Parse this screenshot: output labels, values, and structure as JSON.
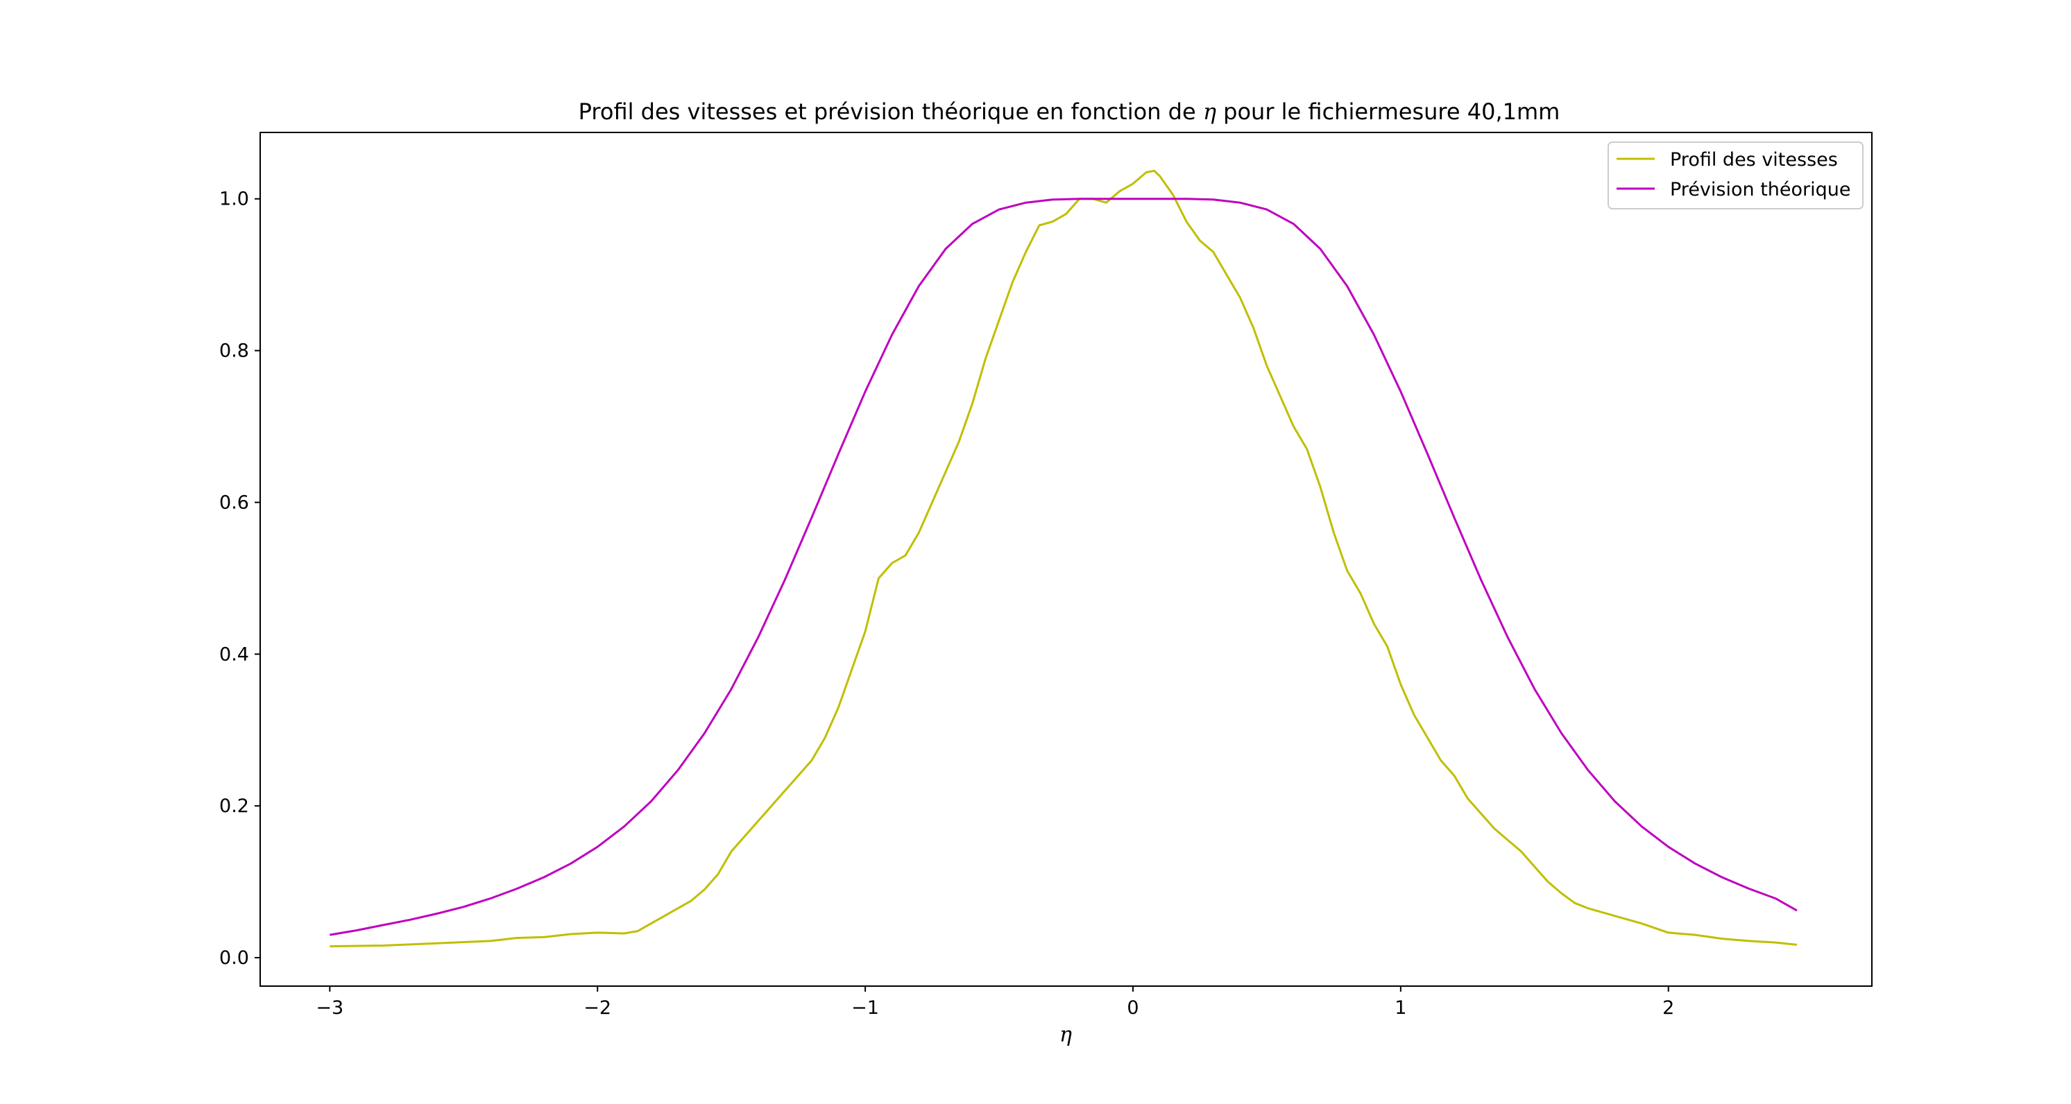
{
  "chart_data": {
    "type": "line",
    "title_parts": [
      "Profil des vitesses et prévision théorique en fonction de ",
      "η",
      " pour le fichiermesure 40,1mm"
    ],
    "xlabel": "η",
    "ylabel": "",
    "xlim": [
      -3.26,
      2.76
    ],
    "ylim": [
      -0.0375,
      1.0875
    ],
    "xticks": [
      -3,
      -2,
      -1,
      0,
      1,
      2
    ],
    "xtick_labels": [
      "−3",
      "−2",
      "−1",
      "0",
      "1",
      "2"
    ],
    "yticks": [
      0.0,
      0.2,
      0.4,
      0.6,
      0.8,
      1.0
    ],
    "ytick_labels": [
      "0.0",
      "0.2",
      "0.4",
      "0.6",
      "0.8",
      "1.0"
    ],
    "grid": false,
    "legend_placement": "top-right",
    "series": [
      {
        "name": "Profil des vitesses",
        "color": "#bfbf00",
        "x": [
          -3.0,
          -2.8,
          -2.6,
          -2.4,
          -2.3,
          -2.2,
          -2.1,
          -2.0,
          -1.9,
          -1.85,
          -1.8,
          -1.75,
          -1.7,
          -1.65,
          -1.6,
          -1.55,
          -1.5,
          -1.45,
          -1.4,
          -1.35,
          -1.3,
          -1.25,
          -1.2,
          -1.15,
          -1.1,
          -1.05,
          -1.0,
          -0.95,
          -0.9,
          -0.85,
          -0.8,
          -0.75,
          -0.7,
          -0.65,
          -0.6,
          -0.55,
          -0.5,
          -0.45,
          -0.4,
          -0.35,
          -0.3,
          -0.25,
          -0.2,
          -0.15,
          -0.1,
          -0.05,
          0.0,
          0.05,
          0.08,
          0.1,
          0.15,
          0.2,
          0.25,
          0.3,
          0.35,
          0.4,
          0.45,
          0.5,
          0.55,
          0.6,
          0.65,
          0.7,
          0.75,
          0.8,
          0.85,
          0.9,
          0.95,
          1.0,
          1.05,
          1.1,
          1.15,
          1.2,
          1.25,
          1.3,
          1.35,
          1.4,
          1.45,
          1.5,
          1.55,
          1.6,
          1.65,
          1.7,
          1.8,
          1.9,
          2.0,
          2.1,
          2.2,
          2.3,
          2.4,
          2.48
        ],
        "y": [
          0.015,
          0.016,
          0.019,
          0.022,
          0.026,
          0.027,
          0.031,
          0.033,
          0.032,
          0.035,
          0.045,
          0.055,
          0.065,
          0.075,
          0.09,
          0.11,
          0.14,
          0.16,
          0.18,
          0.2,
          0.22,
          0.24,
          0.26,
          0.29,
          0.33,
          0.38,
          0.43,
          0.5,
          0.52,
          0.53,
          0.56,
          0.6,
          0.64,
          0.68,
          0.73,
          0.79,
          0.84,
          0.89,
          0.93,
          0.965,
          0.97,
          0.98,
          1.0,
          1.0,
          0.995,
          1.01,
          1.02,
          1.035,
          1.037,
          1.03,
          1.005,
          0.97,
          0.945,
          0.93,
          0.9,
          0.87,
          0.83,
          0.78,
          0.74,
          0.7,
          0.67,
          0.62,
          0.56,
          0.51,
          0.48,
          0.44,
          0.41,
          0.36,
          0.32,
          0.29,
          0.26,
          0.24,
          0.21,
          0.19,
          0.17,
          0.155,
          0.14,
          0.12,
          0.1,
          0.085,
          0.072,
          0.065,
          0.055,
          0.045,
          0.033,
          0.03,
          0.025,
          0.022,
          0.02,
          0.017
        ]
      },
      {
        "name": "Prévision théorique",
        "color": "#bf00bf",
        "formula_note": "",
        "x": [
          -3.0,
          -2.9,
          -2.8,
          -2.7,
          -2.6,
          -2.5,
          -2.4,
          -2.3,
          -2.2,
          -2.1,
          -2.0,
          -1.9,
          -1.8,
          -1.7,
          -1.6,
          -1.5,
          -1.4,
          -1.3,
          -1.2,
          -1.1,
          -1.0,
          -0.9,
          -0.8,
          -0.7,
          -0.6,
          -0.5,
          -0.4,
          -0.3,
          -0.2,
          -0.1,
          0.0,
          0.1,
          0.2,
          0.3,
          0.4,
          0.5,
          0.6,
          0.7,
          0.8,
          0.9,
          1.0,
          1.1,
          1.2,
          1.3,
          1.4,
          1.5,
          1.6,
          1.7,
          1.8,
          1.9,
          2.0,
          2.1,
          2.2,
          2.3,
          2.4,
          2.48
        ],
        "y": [
          0.03,
          0.036,
          0.043,
          0.05,
          0.058,
          0.067,
          0.078,
          0.091,
          0.106,
          0.124,
          0.146,
          0.173,
          0.206,
          0.247,
          0.296,
          0.354,
          0.422,
          0.498,
          0.58,
          0.664,
          0.746,
          0.821,
          0.885,
          0.934,
          0.967,
          0.986,
          0.995,
          0.999,
          1.0,
          1.0,
          1.0,
          1.0,
          1.0,
          0.999,
          0.995,
          0.986,
          0.967,
          0.934,
          0.885,
          0.821,
          0.746,
          0.664,
          0.58,
          0.498,
          0.422,
          0.354,
          0.296,
          0.247,
          0.206,
          0.173,
          0.146,
          0.124,
          0.106,
          0.091,
          0.078,
          0.062
        ]
      }
    ]
  }
}
